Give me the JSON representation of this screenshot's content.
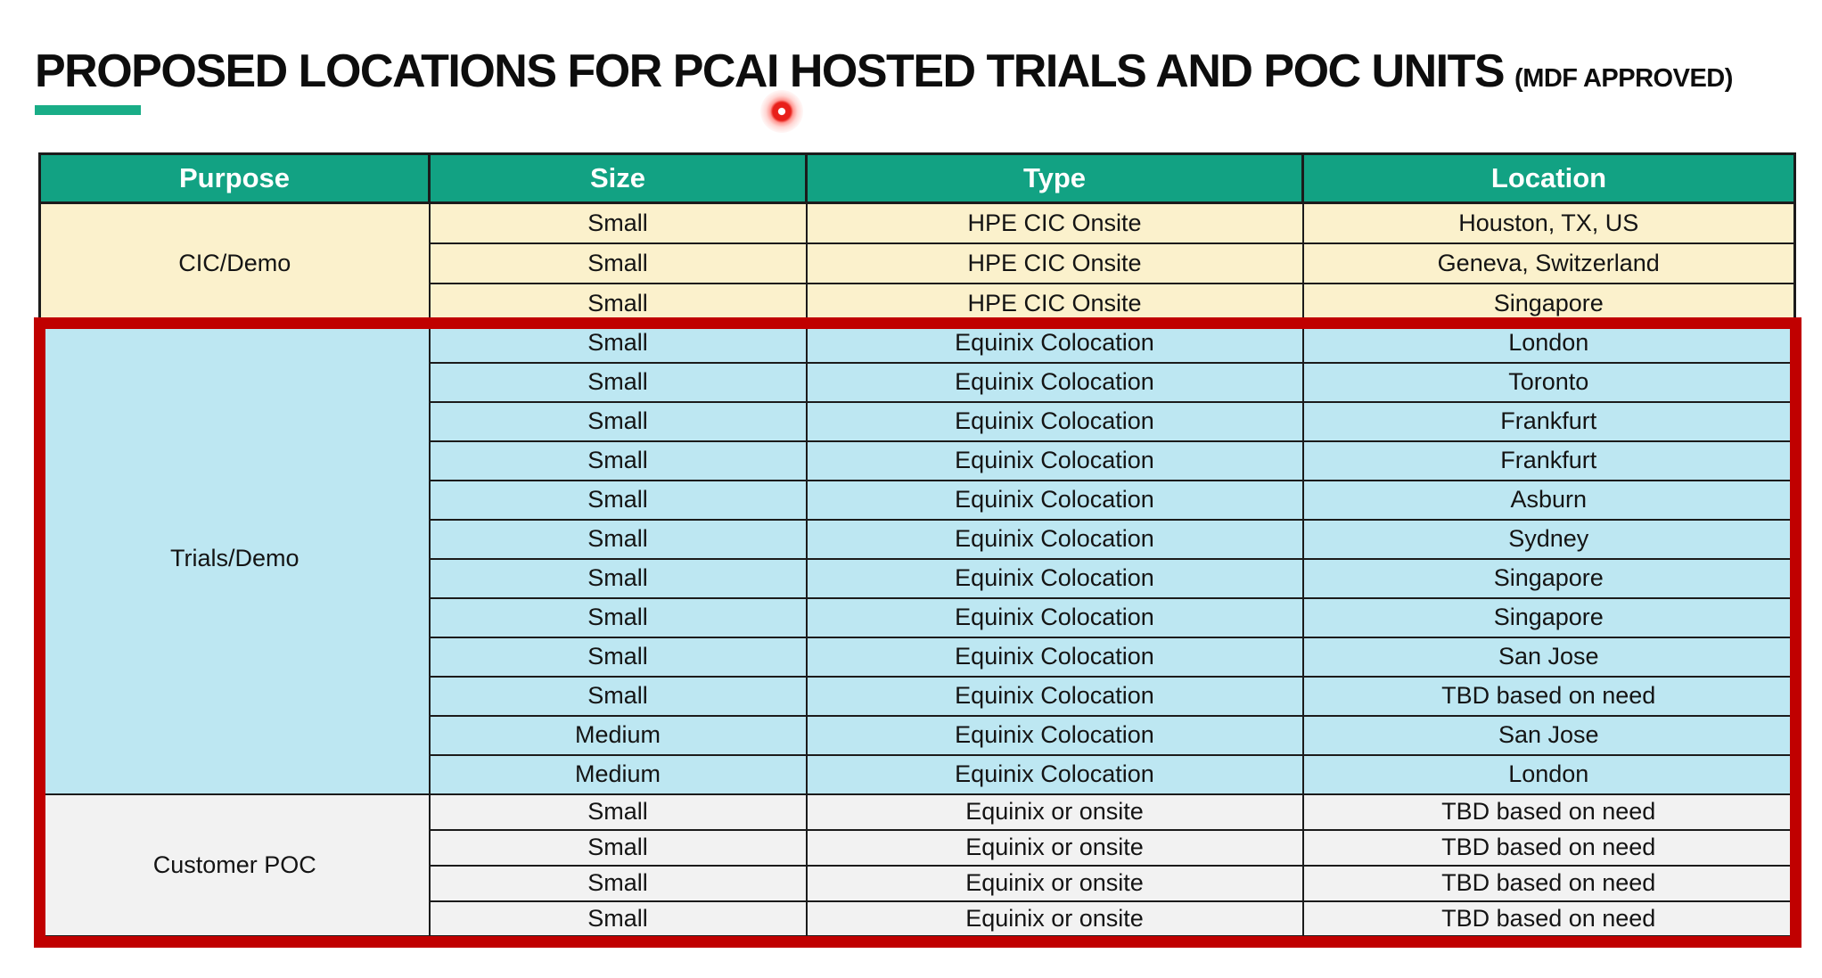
{
  "slide": {
    "title": "PROPOSED LOCATIONS FOR PCAI HOSTED TRIALS AND POC UNITS",
    "title_suffix": "(MDF APPROVED)"
  },
  "table": {
    "columns": [
      "Purpose",
      "Size",
      "Type",
      "Location"
    ],
    "sections": [
      {
        "purpose": "CIC/Demo",
        "rows": [
          [
            "Small",
            "HPE CIC Onsite",
            "Houston, TX, US"
          ],
          [
            "Small",
            "HPE CIC Onsite",
            "Geneva, Switzerland"
          ],
          [
            "Small",
            "HPE CIC Onsite",
            "Singapore"
          ]
        ]
      },
      {
        "purpose": "Trials/Demo",
        "rows": [
          [
            "Small",
            "Equinix Colocation",
            "London"
          ],
          [
            "Small",
            "Equinix Colocation",
            "Toronto"
          ],
          [
            "Small",
            "Equinix Colocation",
            "Frankfurt"
          ],
          [
            "Small",
            "Equinix Colocation",
            "Frankfurt"
          ],
          [
            "Small",
            "Equinix Colocation",
            "Asburn"
          ],
          [
            "Small",
            "Equinix Colocation",
            "Sydney"
          ],
          [
            "Small",
            "Equinix Colocation",
            "Singapore"
          ],
          [
            "Small",
            "Equinix Colocation",
            "Singapore"
          ],
          [
            "Small",
            "Equinix Colocation",
            "San Jose"
          ],
          [
            "Small",
            "Equinix Colocation",
            "TBD based on need"
          ],
          [
            "Medium",
            "Equinix Colocation",
            "San Jose"
          ],
          [
            "Medium",
            "Equinix Colocation",
            "London"
          ]
        ]
      },
      {
        "purpose": "Customer POC",
        "rows": [
          [
            "Small",
            "Equinix or onsite",
            "TBD based on need"
          ],
          [
            "Small",
            "Equinix or onsite",
            "TBD based on need"
          ],
          [
            "Small",
            "Equinix or onsite",
            "TBD based on need"
          ],
          [
            "Small",
            "Equinix or onsite",
            "TBD based on need"
          ]
        ]
      }
    ]
  },
  "colors": {
    "header_bg": "#12A283",
    "header_text": "#FFFFFF",
    "section_cic_bg": "#FBF1CC",
    "section_trials_bg": "#BDE7F2",
    "section_poc_bg": "#F2F2F2",
    "highlight_border": "#C00000",
    "title_underline": "#19AD87",
    "grid_line": "#1B1B1B",
    "laser_dot": "#E8201A"
  },
  "annotations": {
    "laser_pointer": "laser-pointer-dot",
    "highlight_box": "red rectangle highlighting Trials/Demo and Customer POC sections"
  }
}
